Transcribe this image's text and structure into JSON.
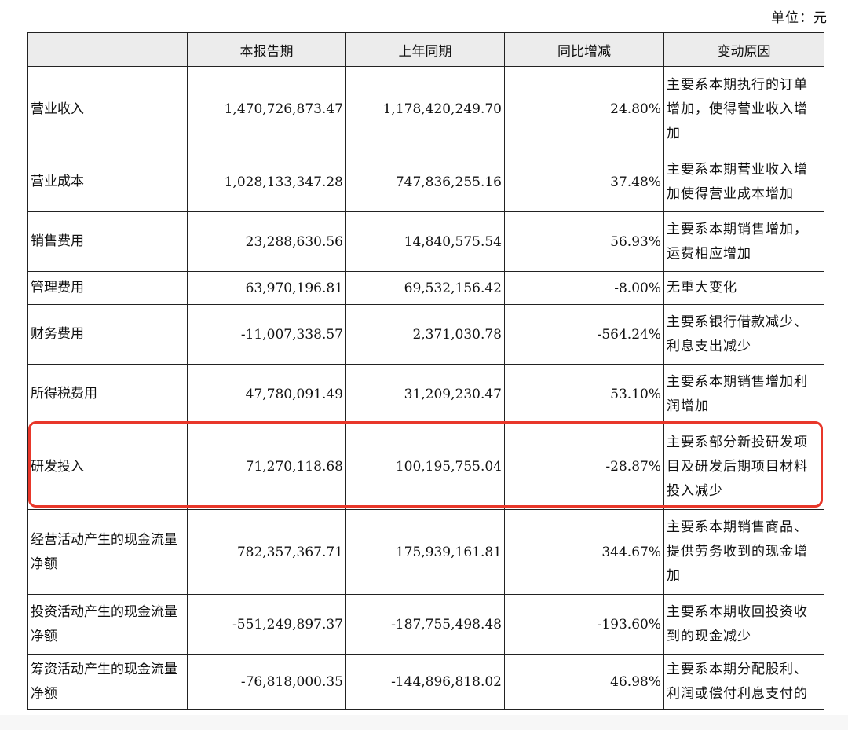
{
  "unit": "单位：元",
  "columns": [
    "",
    "本报告期",
    "上年同期",
    "同比增减",
    "变动原因"
  ],
  "rows": [
    {
      "item": "营业收入",
      "current": "1,470,726,873.47",
      "prior": "1,178,420,249.70",
      "change": "24.80%",
      "reason": "主要系本期执行的订单增加，使得营业收入增加"
    },
    {
      "item": "营业成本",
      "current": "1,028,133,347.28",
      "prior": "747,836,255.16",
      "change": "37.48%",
      "reason": "主要系本期营业收入增加使得营业成本增加"
    },
    {
      "item": "销售费用",
      "current": "23,288,630.56",
      "prior": "14,840,575.54",
      "change": "56.93%",
      "reason": "主要系本期销售增加，运费相应增加"
    },
    {
      "item": "管理费用",
      "current": "63,970,196.81",
      "prior": "69,532,156.42",
      "change": "-8.00%",
      "reason": "无重大变化"
    },
    {
      "item": "财务费用",
      "current": "-11,007,338.57",
      "prior": "2,371,030.78",
      "change": "-564.24%",
      "reason": "主要系银行借款减少、利息支出减少"
    },
    {
      "item": "所得税费用",
      "current": "47,780,091.49",
      "prior": "31,209,230.47",
      "change": "53.10%",
      "reason": "主要系本期销售增加利润增加"
    },
    {
      "item": "研发投入",
      "current": "71,270,118.68",
      "prior": "100,195,755.04",
      "change": "-28.87%",
      "reason": "主要系部分新投研发项目及研发后期项目材料投入减少"
    },
    {
      "item": "经营活动产生的现金流量净额",
      "current": "782,357,367.71",
      "prior": "175,939,161.81",
      "change": "344.67%",
      "reason": "主要系本期销售商品、提供劳务收到的现金增加"
    },
    {
      "item": "投资活动产生的现金流量净额",
      "current": "-551,249,897.37",
      "prior": "-187,755,498.48",
      "change": "-193.60%",
      "reason": "主要系本期收回投资收到的现金减少"
    },
    {
      "item": "筹资活动产生的现金流量净额",
      "current": "-76,818,000.35",
      "prior": "-144,896,818.02",
      "change": "46.98%",
      "reason": "主要系本期分配股利、利润或偿付利息支付的"
    }
  ],
  "highlight_color": "#e8372a"
}
